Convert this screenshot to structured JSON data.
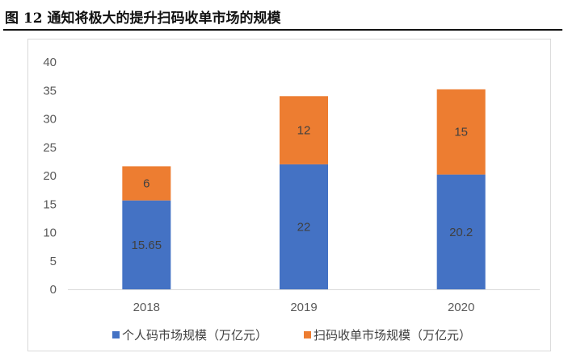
{
  "figure": {
    "title": "图 12 通知将极大的提升扫码收单市场的规模"
  },
  "chart_data": {
    "type": "bar",
    "stacked": true,
    "categories": [
      "2018",
      "2019",
      "2020"
    ],
    "series": [
      {
        "name": "个人码市场规模（万亿元）",
        "values": [
          15.65,
          22,
          20.2
        ],
        "color": "#4472C4",
        "labels": [
          "15.65",
          "22",
          "20.2"
        ]
      },
      {
        "name": "扫码收单市场规模（万亿元）",
        "values": [
          6,
          12,
          15
        ],
        "color": "#ED7D31",
        "labels": [
          "6",
          "12",
          "15"
        ]
      }
    ],
    "ylim": [
      0,
      40
    ],
    "yticks": [
      0,
      5,
      10,
      15,
      20,
      25,
      30,
      35,
      40
    ],
    "legend_position": "bottom",
    "grid": false
  }
}
